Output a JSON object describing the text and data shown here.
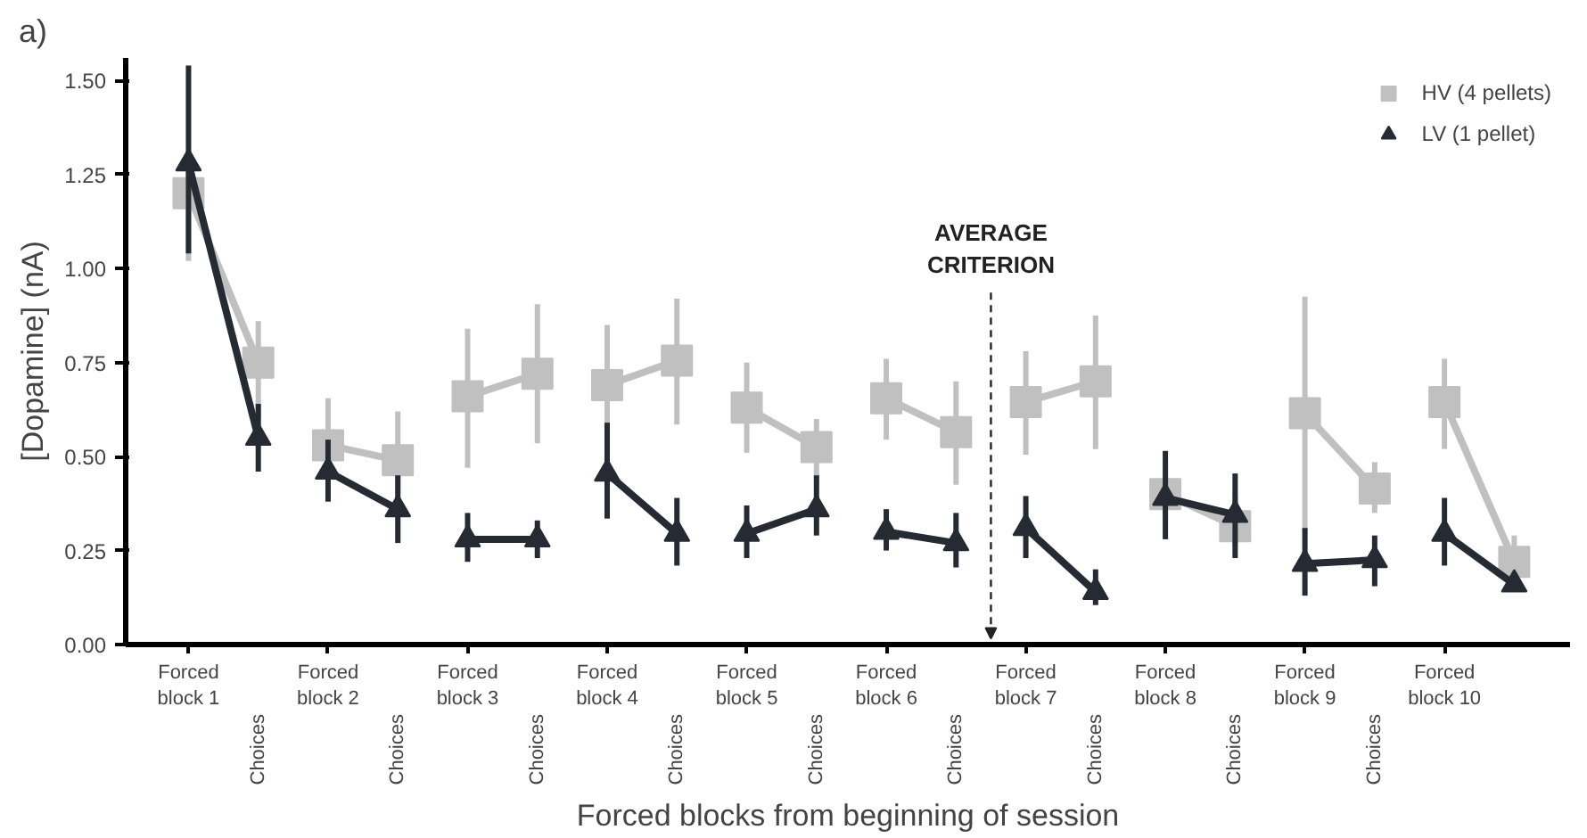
{
  "chart_data": {
    "type": "line",
    "title": "a)",
    "xlabel": "Forced blocks from beginning of session",
    "ylabel": "[Dopamine] (nA)",
    "categories": [
      "Forced\nblock 1",
      "Choices",
      "Forced\nblock 2",
      "Choices",
      "Forced\nblock 3",
      "Choices",
      "Forced\nblock 4",
      "Choices",
      "Forced\nblock 5",
      "Choices",
      "Forced\nblock 6",
      "Choices",
      "Forced\nblock 7",
      "Choices",
      "Forced\nblock 8",
      "Choices",
      "Forced\nblock 9",
      "Choices",
      "Forced\nblock 10",
      null
    ],
    "ylim": [
      0,
      1.56
    ],
    "yticks": [
      {
        "value": 0,
        "label": "0.00"
      },
      {
        "value": 0.25,
        "label": "0.25"
      },
      {
        "value": 0.5,
        "label": "0.50"
      },
      {
        "value": 0.75,
        "label": "0.75"
      },
      {
        "value": 1.0,
        "label": "1.00"
      },
      {
        "value": 1.25,
        "label": "1.25"
      },
      {
        "value": 1.5,
        "label": "1.50"
      }
    ],
    "grid": false,
    "legend": "top right",
    "line_style": "solid",
    "annotations": [
      "AVERAGE CRITERION"
    ],
    "series": [
      {
        "name": "HV (4 pellets)",
        "color": "#c0c0c0",
        "marker": "square",
        "values": [
          1.2,
          0.75,
          null,
          null,
          null,
          null,
          null,
          null,
          null,
          null,
          null,
          null,
          null,
          null,
          null,
          null,
          null,
          null,
          null,
          null
        ],
        "errors": [
          [
            1.02,
            1.3
          ],
          [
            0.6,
            0.86
          ],
          null,
          null,
          null,
          null,
          null,
          null,
          null,
          null,
          null,
          null,
          null,
          null,
          null,
          null,
          null,
          null,
          null,
          null
        ]
      },
      {
        "name": "LV (1 pellet)",
        "color": "#262b33",
        "marker": "triangle",
        "values": [
          1.28,
          0.55,
          null,
          null,
          null,
          null,
          null,
          null,
          null,
          null,
          null,
          null,
          null,
          null,
          null,
          null,
          null,
          null,
          null,
          null
        ],
        "errors": [
          [
            1.04,
            1.54
          ],
          [
            0.46,
            0.64
          ],
          null,
          null,
          null,
          null,
          null,
          null,
          null,
          null,
          null,
          null,
          null,
          null,
          null,
          null,
          null,
          null,
          null,
          null
        ]
      },
      {
        "color": "#c0c0c0",
        "marker": "square",
        "values": [
          null,
          null,
          0.53,
          0.49,
          null,
          null,
          null,
          null,
          null,
          null,
          null,
          null,
          null,
          null,
          null,
          null,
          null,
          null,
          null,
          null
        ],
        "errors": [
          null,
          null,
          [
            0.45,
            0.655
          ],
          [
            0.4,
            0.62
          ],
          null,
          null,
          null,
          null,
          null,
          null,
          null,
          null,
          null,
          null,
          null,
          null,
          null,
          null,
          null,
          null
        ]
      },
      {
        "color": "#262b33",
        "marker": "triangle",
        "values": [
          null,
          null,
          0.46,
          0.36,
          null,
          null,
          null,
          null,
          null,
          null,
          null,
          null,
          null,
          null,
          null,
          null,
          null,
          null,
          null,
          null
        ],
        "errors": [
          null,
          null,
          [
            0.38,
            0.545
          ],
          [
            0.27,
            0.45
          ],
          null,
          null,
          null,
          null,
          null,
          null,
          null,
          null,
          null,
          null,
          null,
          null,
          null,
          null,
          null,
          null
        ]
      },
      {
        "color": "#c0c0c0",
        "marker": "square",
        "values": [
          null,
          null,
          null,
          null,
          0.66,
          0.72,
          null,
          null,
          null,
          null,
          null,
          null,
          null,
          null,
          null,
          null,
          null,
          null,
          null,
          null
        ],
        "errors": [
          null,
          null,
          null,
          null,
          [
            0.47,
            0.84
          ],
          [
            0.535,
            0.905
          ],
          null,
          null,
          null,
          null,
          null,
          null,
          null,
          null,
          null,
          null,
          null,
          null,
          null,
          null
        ]
      },
      {
        "color": "#262b33",
        "marker": "triangle",
        "values": [
          null,
          null,
          null,
          null,
          0.28,
          0.28,
          null,
          null,
          null,
          null,
          null,
          null,
          null,
          null,
          null,
          null,
          null,
          null,
          null,
          null
        ],
        "errors": [
          null,
          null,
          null,
          null,
          [
            0.22,
            0.35
          ],
          [
            0.23,
            0.33
          ],
          null,
          null,
          null,
          null,
          null,
          null,
          null,
          null,
          null,
          null,
          null,
          null,
          null,
          null
        ]
      },
      {
        "color": "#c0c0c0",
        "marker": "square",
        "values": [
          null,
          null,
          null,
          null,
          null,
          null,
          0.69,
          0.755,
          null,
          null,
          null,
          null,
          null,
          null,
          null,
          null,
          null,
          null,
          null,
          null
        ],
        "errors": [
          null,
          null,
          null,
          null,
          null,
          null,
          [
            0.55,
            0.85
          ],
          [
            0.585,
            0.92
          ],
          null,
          null,
          null,
          null,
          null,
          null,
          null,
          null,
          null,
          null,
          null,
          null
        ]
      },
      {
        "color": "#262b33",
        "marker": "triangle",
        "values": [
          null,
          null,
          null,
          null,
          null,
          null,
          0.455,
          0.295,
          null,
          null,
          null,
          null,
          null,
          null,
          null,
          null,
          null,
          null,
          null,
          null
        ],
        "errors": [
          null,
          null,
          null,
          null,
          null,
          null,
          [
            0.335,
            0.59
          ],
          [
            0.21,
            0.39
          ],
          null,
          null,
          null,
          null,
          null,
          null,
          null,
          null,
          null,
          null,
          null,
          null
        ]
      },
      {
        "color": "#c0c0c0",
        "marker": "square",
        "values": [
          null,
          null,
          null,
          null,
          null,
          null,
          null,
          null,
          0.63,
          0.525,
          null,
          null,
          null,
          null,
          null,
          null,
          null,
          null,
          null,
          null
        ],
        "errors": [
          null,
          null,
          null,
          null,
          null,
          null,
          null,
          null,
          [
            0.51,
            0.75
          ],
          [
            0.44,
            0.6
          ],
          null,
          null,
          null,
          null,
          null,
          null,
          null,
          null,
          null,
          null
        ]
      },
      {
        "color": "#262b33",
        "marker": "triangle",
        "values": [
          null,
          null,
          null,
          null,
          null,
          null,
          null,
          null,
          0.295,
          0.36,
          null,
          null,
          null,
          null,
          null,
          null,
          null,
          null,
          null,
          null
        ],
        "errors": [
          null,
          null,
          null,
          null,
          null,
          null,
          null,
          null,
          [
            0.23,
            0.37
          ],
          [
            0.29,
            0.45
          ],
          null,
          null,
          null,
          null,
          null,
          null,
          null,
          null,
          null,
          null
        ]
      },
      {
        "color": "#c0c0c0",
        "marker": "square",
        "values": [
          null,
          null,
          null,
          null,
          null,
          null,
          null,
          null,
          null,
          null,
          0.655,
          0.565,
          null,
          null,
          null,
          null,
          null,
          null,
          null,
          null
        ],
        "errors": [
          null,
          null,
          null,
          null,
          null,
          null,
          null,
          null,
          null,
          null,
          [
            0.545,
            0.76
          ],
          [
            0.425,
            0.7
          ],
          null,
          null,
          null,
          null,
          null,
          null,
          null,
          null
        ]
      },
      {
        "color": "#262b33",
        "marker": "triangle",
        "values": [
          null,
          null,
          null,
          null,
          null,
          null,
          null,
          null,
          null,
          null,
          0.3,
          0.27,
          null,
          null,
          null,
          null,
          null,
          null,
          null,
          null
        ],
        "errors": [
          null,
          null,
          null,
          null,
          null,
          null,
          null,
          null,
          null,
          null,
          [
            0.25,
            0.36
          ],
          [
            0.205,
            0.35
          ],
          null,
          null,
          null,
          null,
          null,
          null,
          null,
          null
        ]
      },
      {
        "color": "#c0c0c0",
        "marker": "square",
        "values": [
          null,
          null,
          null,
          null,
          null,
          null,
          null,
          null,
          null,
          null,
          null,
          null,
          0.645,
          0.7,
          null,
          null,
          null,
          null,
          null,
          null
        ],
        "errors": [
          null,
          null,
          null,
          null,
          null,
          null,
          null,
          null,
          null,
          null,
          null,
          null,
          [
            0.505,
            0.78
          ],
          [
            0.52,
            0.875
          ],
          null,
          null,
          null,
          null,
          null,
          null
        ]
      },
      {
        "color": "#262b33",
        "marker": "triangle",
        "values": [
          null,
          null,
          null,
          null,
          null,
          null,
          null,
          null,
          null,
          null,
          null,
          null,
          0.31,
          0.14,
          null,
          null,
          null,
          null,
          null,
          null
        ],
        "errors": [
          null,
          null,
          null,
          null,
          null,
          null,
          null,
          null,
          null,
          null,
          null,
          null,
          [
            0.23,
            0.395
          ],
          [
            0.105,
            0.2
          ],
          null,
          null,
          null,
          null,
          null,
          null
        ]
      },
      {
        "color": "#c0c0c0",
        "marker": "square",
        "values": [
          null,
          null,
          null,
          null,
          null,
          null,
          null,
          null,
          null,
          null,
          null,
          null,
          null,
          null,
          0.4,
          0.315,
          null,
          null,
          null,
          null
        ],
        "errors": [
          null,
          null,
          null,
          null,
          null,
          null,
          null,
          null,
          null,
          null,
          null,
          null,
          null,
          null,
          [
            0.33,
            0.47
          ],
          [
            0.26,
            0.4
          ],
          null,
          null,
          null,
          null
        ]
      },
      {
        "color": "#262b33",
        "marker": "triangle",
        "values": [
          null,
          null,
          null,
          null,
          null,
          null,
          null,
          null,
          null,
          null,
          null,
          null,
          null,
          null,
          0.39,
          0.345,
          null,
          null,
          null,
          null
        ],
        "errors": [
          null,
          null,
          null,
          null,
          null,
          null,
          null,
          null,
          null,
          null,
          null,
          null,
          null,
          null,
          [
            0.28,
            0.515
          ],
          [
            0.23,
            0.455
          ],
          null,
          null,
          null,
          null
        ]
      },
      {
        "color": "#c0c0c0",
        "marker": "square",
        "values": [
          null,
          null,
          null,
          null,
          null,
          null,
          null,
          null,
          null,
          null,
          null,
          null,
          null,
          null,
          null,
          null,
          0.615,
          0.415,
          null,
          null
        ],
        "errors": [
          null,
          null,
          null,
          null,
          null,
          null,
          null,
          null,
          null,
          null,
          null,
          null,
          null,
          null,
          null,
          null,
          [
            0.3,
            0.925
          ],
          [
            0.35,
            0.485
          ],
          null,
          null
        ]
      },
      {
        "color": "#262b33",
        "marker": "triangle",
        "values": [
          null,
          null,
          null,
          null,
          null,
          null,
          null,
          null,
          null,
          null,
          null,
          null,
          null,
          null,
          null,
          null,
          0.215,
          0.225,
          null,
          null
        ],
        "errors": [
          null,
          null,
          null,
          null,
          null,
          null,
          null,
          null,
          null,
          null,
          null,
          null,
          null,
          null,
          null,
          null,
          [
            0.13,
            0.31
          ],
          [
            0.155,
            0.29
          ],
          null,
          null
        ]
      },
      {
        "color": "#c0c0c0",
        "marker": "square",
        "values": [
          null,
          null,
          null,
          null,
          null,
          null,
          null,
          null,
          null,
          null,
          null,
          null,
          null,
          null,
          null,
          null,
          null,
          null,
          0.645,
          0.22
        ],
        "errors": [
          null,
          null,
          null,
          null,
          null,
          null,
          null,
          null,
          null,
          null,
          null,
          null,
          null,
          null,
          null,
          null,
          null,
          null,
          [
            0.52,
            0.76
          ],
          [
            0.17,
            0.29
          ]
        ]
      },
      {
        "color": "#262b33",
        "marker": "triangle",
        "values": [
          null,
          null,
          null,
          null,
          null,
          null,
          null,
          null,
          null,
          null,
          null,
          null,
          null,
          null,
          null,
          null,
          null,
          null,
          0.295,
          0.16
        ],
        "errors": [
          null,
          null,
          null,
          null,
          null,
          null,
          null,
          null,
          null,
          null,
          null,
          null,
          null,
          null,
          null,
          null,
          null,
          null,
          [
            0.21,
            0.39
          ],
          [
            0.14,
            0.19
          ]
        ]
      }
    ]
  }
}
